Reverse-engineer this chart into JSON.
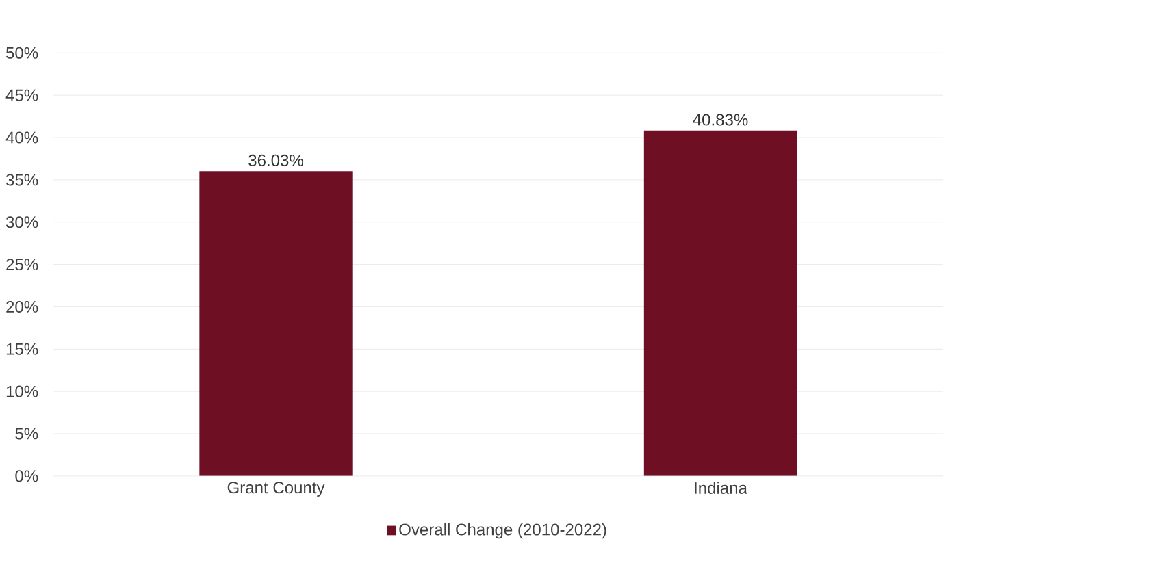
{
  "chart_data": {
    "type": "bar",
    "categories": [
      "Grant County",
      "Indiana"
    ],
    "series": [
      {
        "name": "Overall Change (2010-2022)",
        "color": "#6e0f23",
        "values": [
          36.03,
          40.83
        ],
        "value_labels": [
          "36.03%",
          "40.83%"
        ]
      }
    ],
    "ylim": [
      0,
      50
    ],
    "yticks": [
      {
        "value": 0,
        "label": "0%"
      },
      {
        "value": 5,
        "label": "5%"
      },
      {
        "value": 10,
        "label": "10%"
      },
      {
        "value": 15,
        "label": "15%"
      },
      {
        "value": 20,
        "label": "20%"
      },
      {
        "value": 25,
        "label": "25%"
      },
      {
        "value": 30,
        "label": "30%"
      },
      {
        "value": 35,
        "label": "35%"
      },
      {
        "value": 40,
        "label": "40%"
      },
      {
        "value": 45,
        "label": "45%"
      },
      {
        "value": 50,
        "label": "50%"
      }
    ],
    "grid": "y",
    "legend": "bottom"
  }
}
